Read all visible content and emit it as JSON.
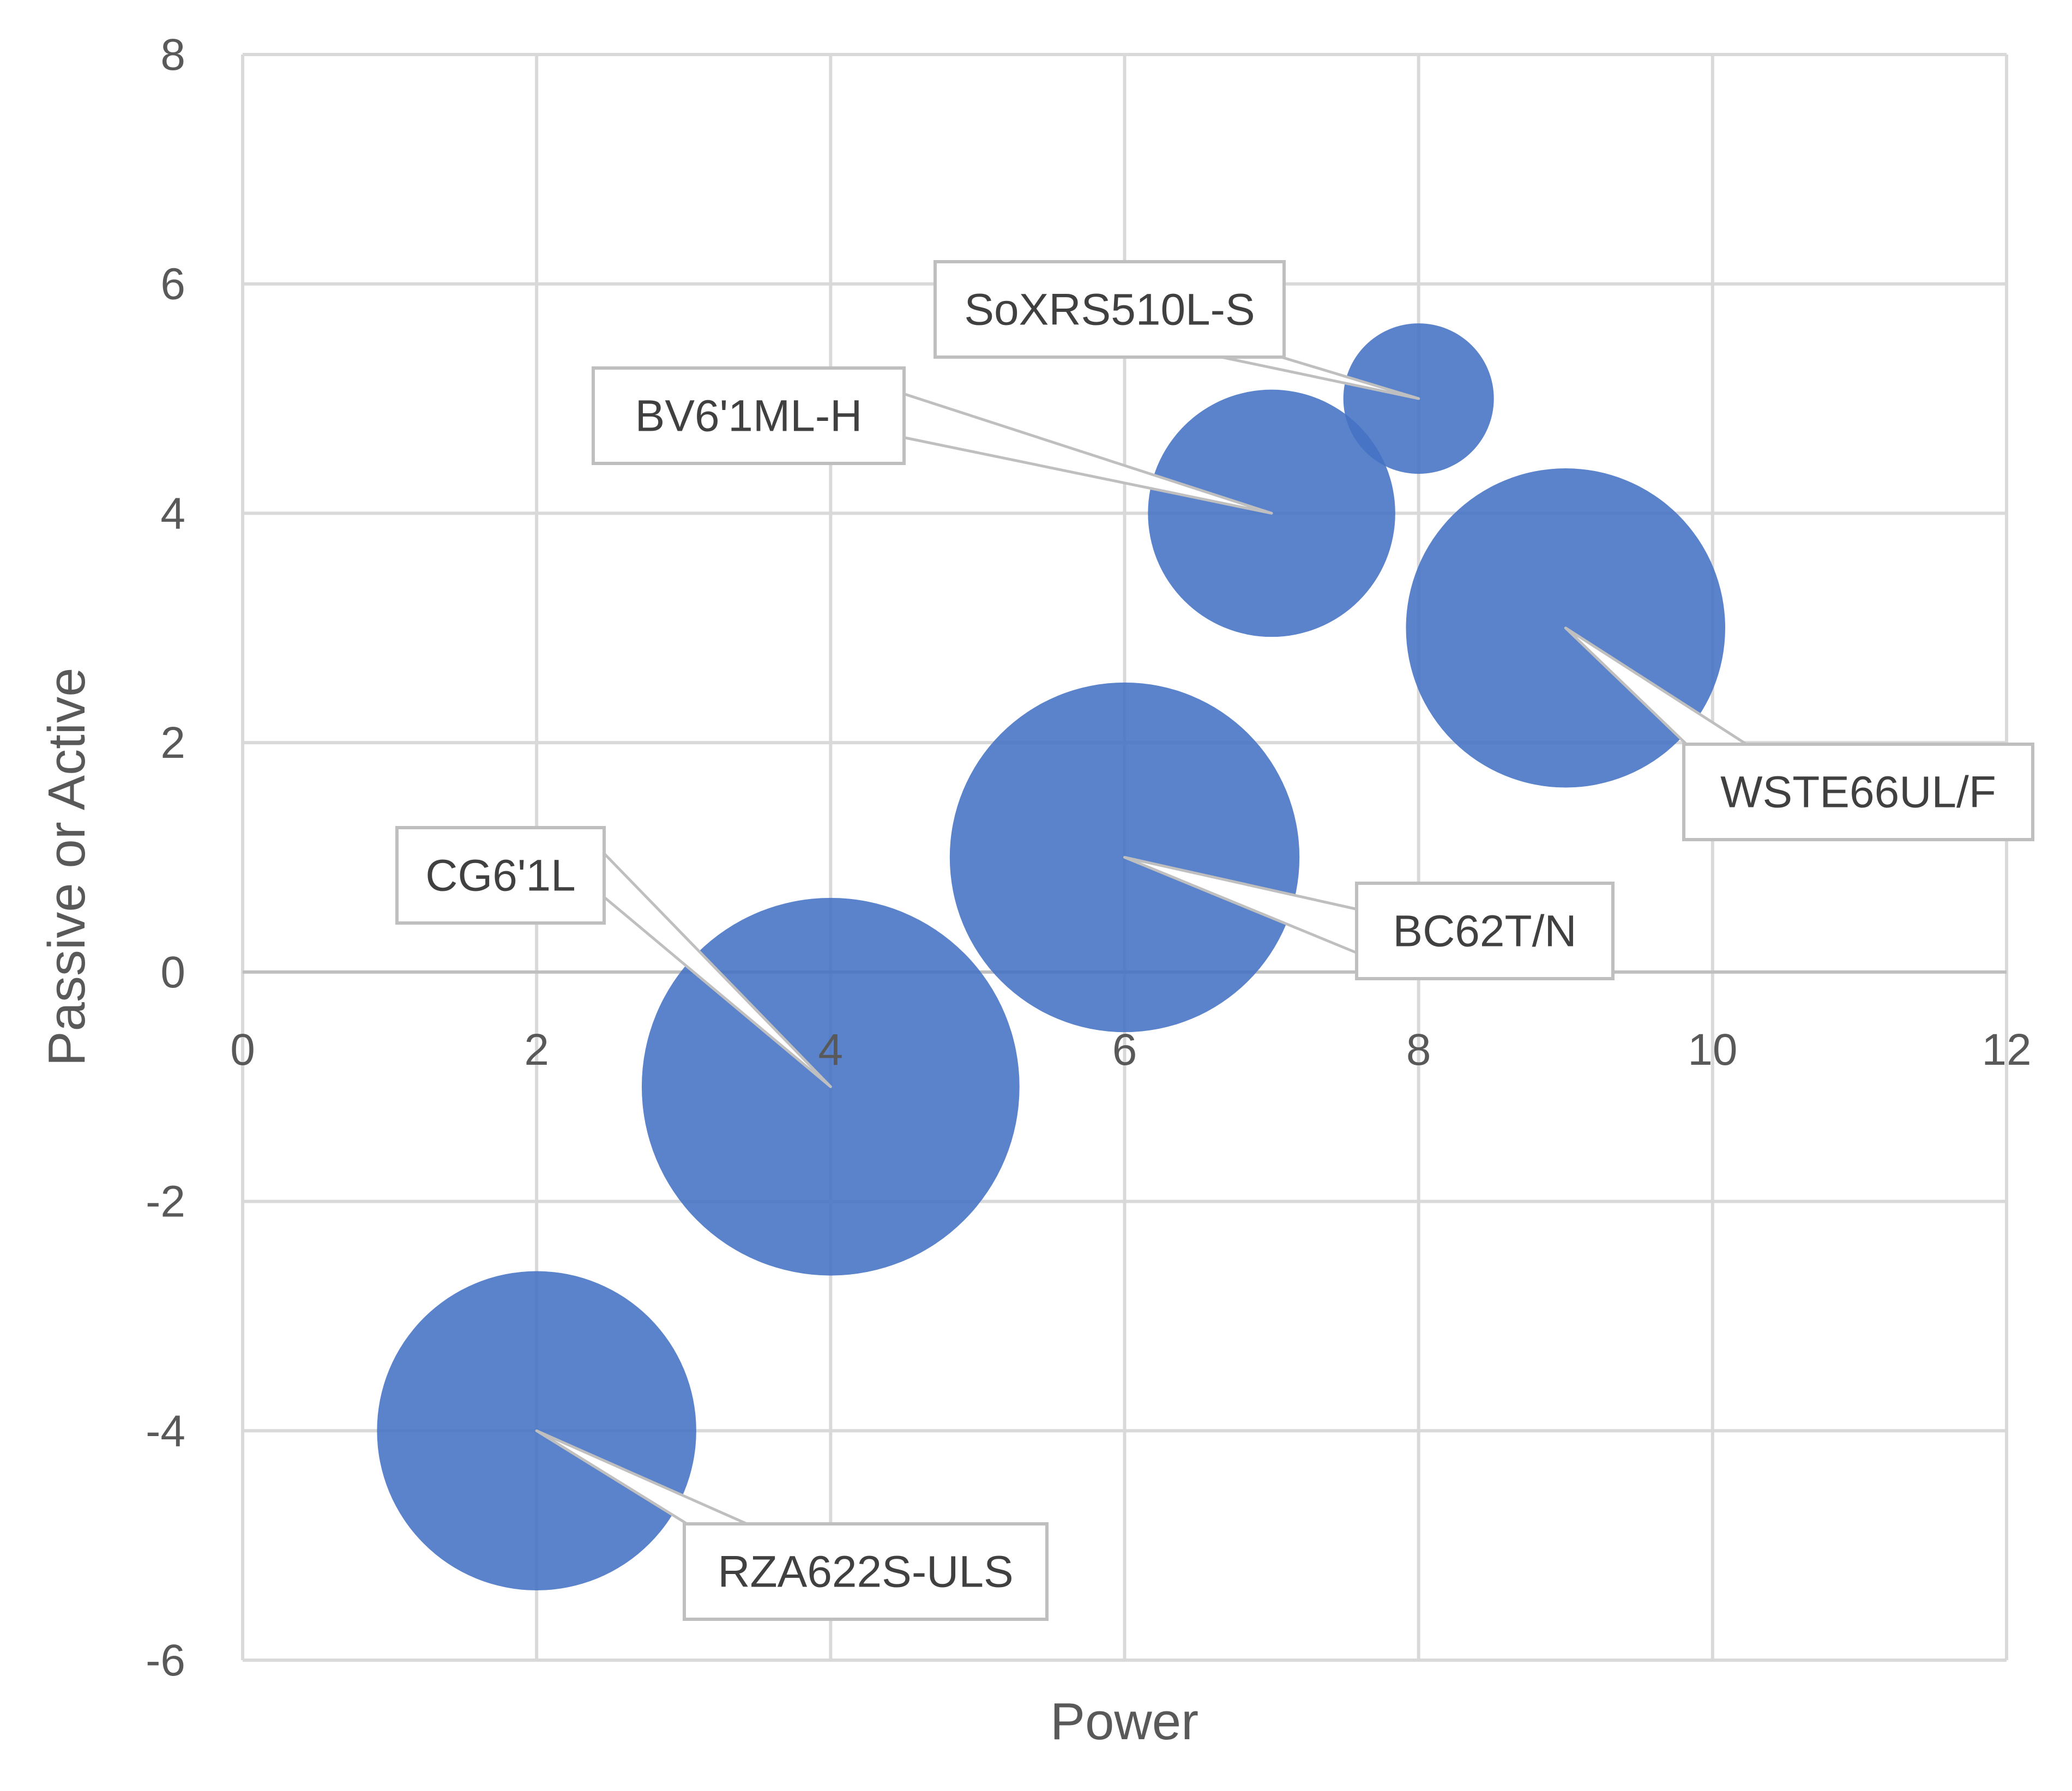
{
  "chart_data": {
    "type": "bubble",
    "title": "",
    "xlabel": "Power",
    "ylabel": "Passive or Active",
    "xlim": [
      0,
      12
    ],
    "ylim": [
      -6,
      8
    ],
    "x_ticks": [
      0,
      2,
      4,
      6,
      8,
      10,
      12
    ],
    "y_ticks": [
      -6,
      -4,
      -2,
      0,
      2,
      4,
      6,
      8
    ],
    "x_tick_labels": [
      "0",
      "2",
      "4",
      "6",
      "8",
      "10",
      "12"
    ],
    "y_tick_labels": [
      "-6",
      "-4",
      "-2",
      "0",
      "2",
      "4",
      "6",
      "8"
    ],
    "grid": true,
    "legend": "none",
    "series": [
      {
        "color": "#4472c4",
        "points": [
          {
            "label": "RZA622S-ULS",
            "x": 2,
            "y": -4,
            "size": 4.5
          },
          {
            "label": "CG6'1L",
            "x": 4,
            "y": -1,
            "size": 6.3
          },
          {
            "label": "BC62T/N",
            "x": 6,
            "y": 1,
            "size": 5.4
          },
          {
            "label": "BV6'1ML-H",
            "x": 7,
            "y": 4,
            "size": 2.7
          },
          {
            "label": "SoXRS510L-S",
            "x": 8,
            "y": 5,
            "size": 1
          },
          {
            "label": "WSTE66UL/F",
            "x": 9,
            "y": 3,
            "size": 4.5
          }
        ]
      }
    ]
  },
  "colors": {
    "bubble": "#4472c4",
    "grid": "#d9d9d9",
    "text": "#595959"
  }
}
